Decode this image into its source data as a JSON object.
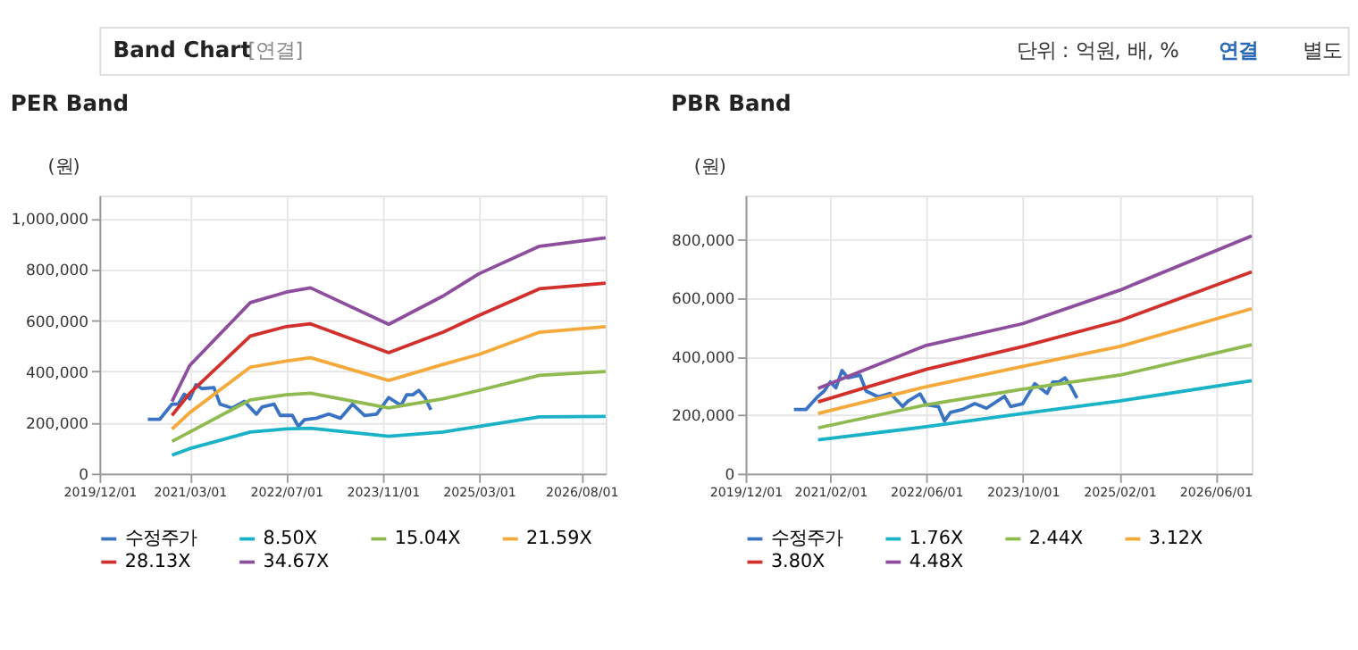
{
  "chart_data": [
    {
      "type": "line",
      "title": "PER Band",
      "ylabel": "(원)",
      "annotations": [
        "Band Chart",
        "[연결]",
        "단위 : 억원, 배, %",
        "연결",
        "별도"
      ],
      "xlim": [
        "2019-12-01",
        "2026-12-01"
      ],
      "xticks": [
        {
          "value": "2019-12-01",
          "label": "2019/12/01"
        },
        {
          "value": "2021-03-01",
          "label": "2021/03/01"
        },
        {
          "value": "2022-07-01",
          "label": "2022/07/01"
        },
        {
          "value": "2023-11-01",
          "label": "2023/11/01"
        },
        {
          "value": "2025-03-01",
          "label": "2025/03/01"
        },
        {
          "value": "2026-08-01",
          "label": "2026/08/01"
        }
      ],
      "ylim": [
        0,
        1090000
      ],
      "yticks": [
        0,
        {
          "value": 200000,
          "label": "200,000"
        },
        {
          "value": 400000,
          "label": "400,000"
        },
        {
          "value": 600000,
          "label": "600,000"
        },
        {
          "value": 800000,
          "label": "800,000"
        },
        {
          "value": 1000000,
          "label": "1,000,000"
        }
      ],
      "grid": true,
      "legend": "bottom",
      "series": [
        {
          "name": "수정주가",
          "color": "#3a73c4",
          "x": [
            "2020-08",
            "2020-10",
            "2020-12",
            "2021-01",
            "2021-02",
            "2021-03",
            "2021-04",
            "2021-05",
            "2021-07",
            "2021-08",
            "2021-10",
            "2021-12",
            "2022-02",
            "2022-03",
            "2022-05",
            "2022-06",
            "2022-08",
            "2022-09",
            "2022-10",
            "2022-12",
            "2023-02",
            "2023-04",
            "2023-06",
            "2023-08",
            "2023-10",
            "2023-12",
            "2024-02",
            "2024-03",
            "2024-04",
            "2024-05",
            "2024-06",
            "2024-07"
          ],
          "values": [
            213000,
            213000,
            272000,
            272000,
            311000,
            293000,
            348000,
            333000,
            337000,
            272000,
            257000,
            283000,
            233000,
            261000,
            272000,
            228000,
            228000,
            185000,
            211000,
            217000,
            233000,
            217000,
            272000,
            228000,
            233000,
            298000,
            267000,
            309000,
            309000,
            326000,
            298000,
            250000
          ]
        },
        {
          "name": "8.50X",
          "color": "#1ab2c6",
          "x": [
            "2020-12",
            "2021-03",
            "2022-01",
            "2022-07",
            "2022-11",
            "2023-12",
            "2024-09",
            "2025-03",
            "2026-01",
            "2026-12"
          ],
          "values": [
            72000,
            98000,
            163000,
            175000,
            178000,
            146000,
            163000,
            185000,
            222000,
            224000
          ]
        },
        {
          "name": "15.04X",
          "color": "#8fba4f",
          "x": [
            "2020-12",
            "2021-03",
            "2022-01",
            "2022-07",
            "2022-11",
            "2023-12",
            "2024-09",
            "2025-03",
            "2026-01",
            "2026-12"
          ],
          "values": [
            126000,
            163000,
            289000,
            309000,
            315000,
            257000,
            293000,
            326000,
            385000,
            400000
          ]
        },
        {
          "name": "21.59X",
          "color": "#f5a93a",
          "x": [
            "2020-12",
            "2021-03",
            "2022-01",
            "2022-07",
            "2022-11",
            "2023-12",
            "2024-09",
            "2025-03",
            "2026-01",
            "2026-12"
          ],
          "values": [
            174000,
            239000,
            417000,
            441000,
            454000,
            365000,
            428000,
            467000,
            554000,
            576000
          ]
        },
        {
          "name": "28.13X",
          "color": "#d2302c",
          "x": [
            "2020-12",
            "2021-03",
            "2022-01",
            "2022-07",
            "2022-11",
            "2023-12",
            "2024-09",
            "2025-03",
            "2026-01",
            "2026-12"
          ],
          "values": [
            228000,
            315000,
            539000,
            576000,
            587000,
            474000,
            554000,
            620000,
            724000,
            746000
          ]
        },
        {
          "name": "34.67X",
          "color": "#8d4e9e",
          "x": [
            "2020-12",
            "2021-03",
            "2022-01",
            "2022-07",
            "2022-11",
            "2023-12",
            "2024-09",
            "2025-03",
            "2026-01",
            "2026-12"
          ],
          "values": [
            283000,
            424000,
            670000,
            711000,
            728000,
            585000,
            696000,
            783000,
            891000,
            924000
          ]
        }
      ]
    },
    {
      "type": "line",
      "title": "PBR Band",
      "ylabel": "(원)",
      "xlim": [
        "2019-12-01",
        "2026-12-01"
      ],
      "xticks": [
        {
          "value": "2019-12-01",
          "label": "2019/12/01"
        },
        {
          "value": "2021-02-01",
          "label": "2021/02/01"
        },
        {
          "value": "2022-06-01",
          "label": "2022/06/01"
        },
        {
          "value": "2023-10-01",
          "label": "2023/10/01"
        },
        {
          "value": "2025-02-01",
          "label": "2025/02/01"
        },
        {
          "value": "2026-06-01",
          "label": "2026/06/01"
        }
      ],
      "ylim": [
        0,
        950000
      ],
      "yticks": [
        0,
        {
          "value": 200000,
          "label": "200,000"
        },
        {
          "value": 400000,
          "label": "400,000"
        },
        {
          "value": 600000,
          "label": "600,000"
        },
        {
          "value": 800000,
          "label": "800,000"
        }
      ],
      "grid": true,
      "legend": "bottom",
      "series": [
        {
          "name": "수정주가",
          "color": "#3a73c4",
          "x": [
            "2020-08",
            "2020-10",
            "2020-12",
            "2021-01",
            "2021-02",
            "2021-03",
            "2021-04",
            "2021-05",
            "2021-07",
            "2021-08",
            "2021-10",
            "2021-12",
            "2022-02",
            "2022-03",
            "2022-05",
            "2022-06",
            "2022-08",
            "2022-09",
            "2022-10",
            "2022-12",
            "2023-02",
            "2023-04",
            "2023-07",
            "2023-08",
            "2023-10",
            "2023-12",
            "2024-02",
            "2024-03",
            "2024-04",
            "2024-05",
            "2024-06",
            "2024-07"
          ],
          "values": [
            219000,
            219000,
            264000,
            282000,
            313000,
            293000,
            352000,
            327000,
            336000,
            282000,
            262000,
            274000,
            229000,
            248000,
            272000,
            235000,
            229000,
            180000,
            209000,
            219000,
            239000,
            223000,
            264000,
            229000,
            239000,
            307000,
            274000,
            313000,
            313000,
            327000,
            297000,
            258000
          ]
        },
        {
          "name": "1.76X",
          "color": "#1ab2c6",
          "x": [
            "2020-12",
            "2022-06",
            "2023-10",
            "2025-02",
            "2026-12"
          ],
          "values": [
            115000,
            160000,
            205000,
            248000,
            317000
          ]
        },
        {
          "name": "2.44X",
          "color": "#8fba4f",
          "x": [
            "2020-12",
            "2022-06",
            "2023-10",
            "2025-02",
            "2026-12"
          ],
          "values": [
            156000,
            235000,
            288000,
            336000,
            440000
          ]
        },
        {
          "name": "3.12X",
          "color": "#f5a93a",
          "x": [
            "2020-12",
            "2022-06",
            "2023-10",
            "2025-02",
            "2026-12"
          ],
          "values": [
            205000,
            297000,
            366000,
            434000,
            563000
          ]
        },
        {
          "name": "3.80X",
          "color": "#d2302c",
          "x": [
            "2020-12",
            "2022-06",
            "2023-10",
            "2025-02",
            "2026-12"
          ],
          "values": [
            245000,
            356000,
            434000,
            522000,
            689000
          ]
        },
        {
          "name": "4.48X",
          "color": "#8d4e9e",
          "x": [
            "2020-12",
            "2022-06",
            "2023-10",
            "2025-02",
            "2026-12"
          ],
          "values": [
            291000,
            438000,
            512000,
            626000,
            812000
          ]
        }
      ]
    }
  ]
}
